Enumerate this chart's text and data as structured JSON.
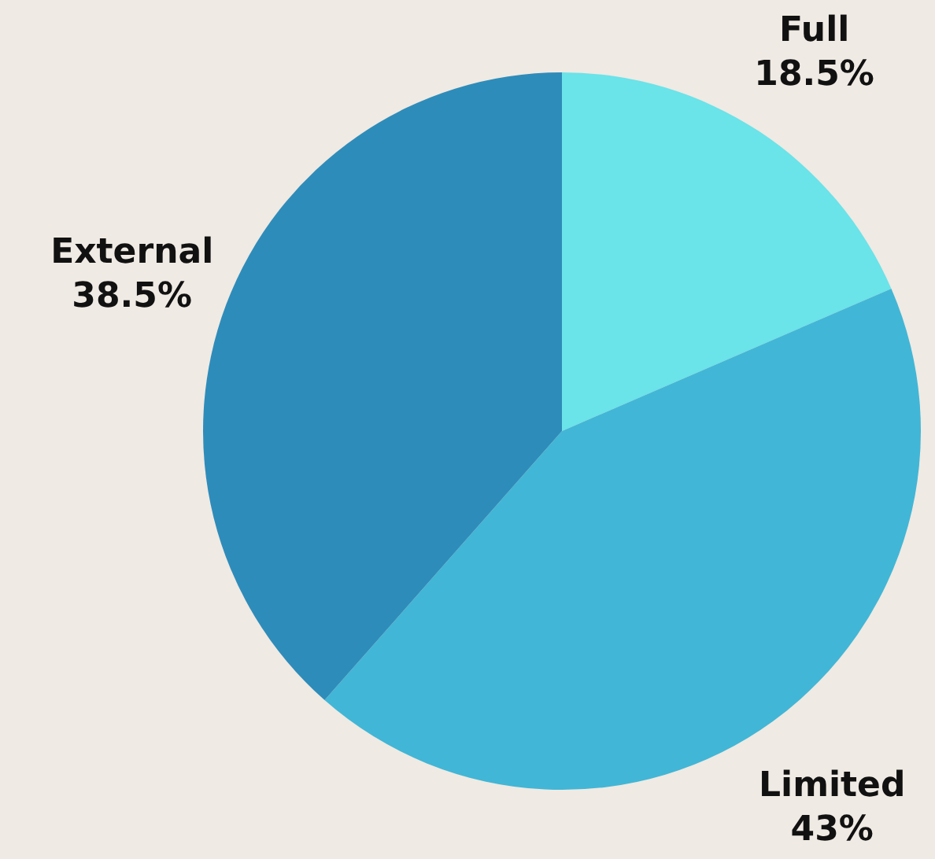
{
  "chart_data": {
    "type": "pie",
    "categories": [
      "Full",
      "Limited",
      "External"
    ],
    "values": [
      18.5,
      43,
      38.5
    ],
    "value_labels": [
      "18.5%",
      "43%",
      "38.5%"
    ],
    "colors": [
      "#6ae3e9",
      "#42b6d6",
      "#2e8cba"
    ],
    "legend": false
  }
}
